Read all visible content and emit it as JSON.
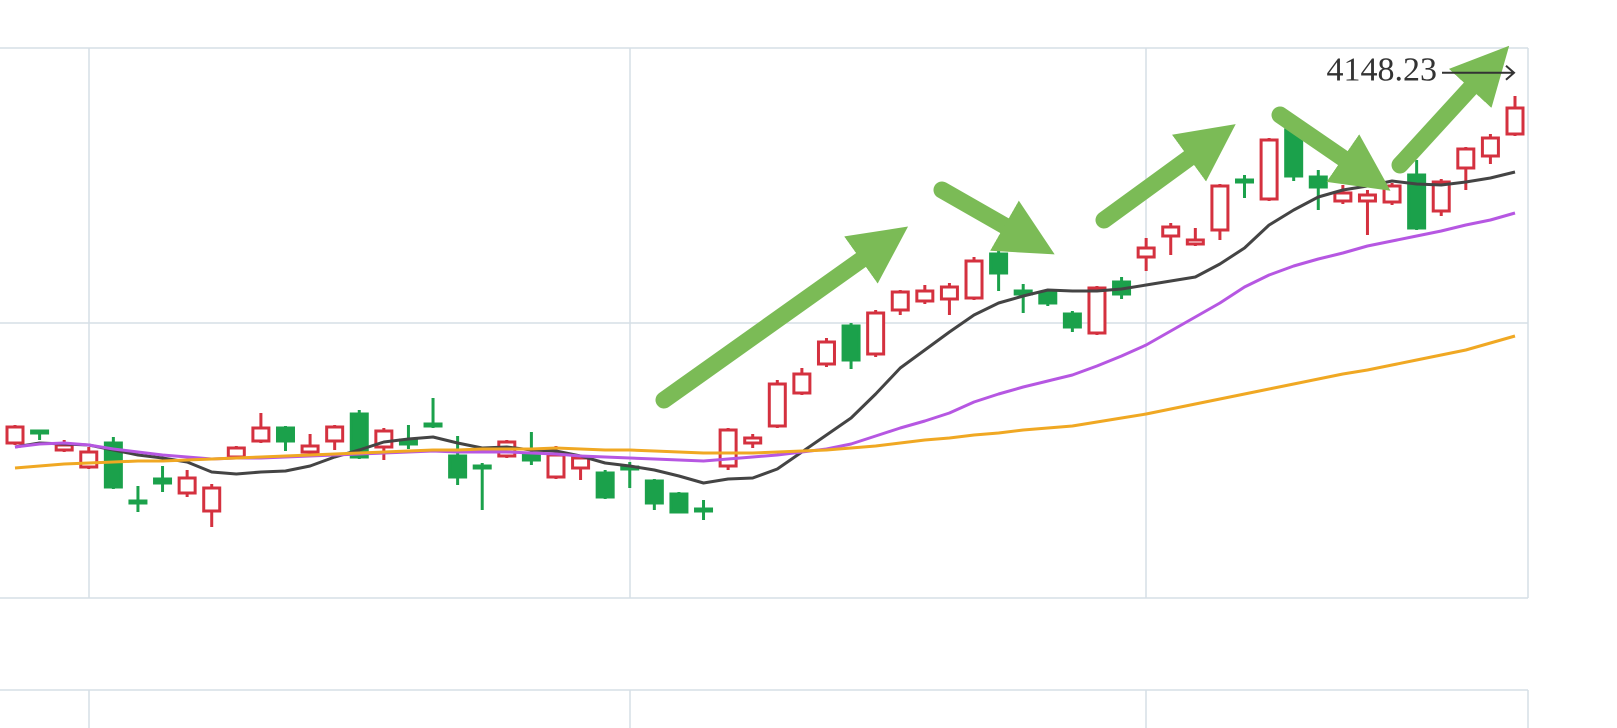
{
  "chart_data": {
    "type": "candlestick",
    "up_color": "#d4313f",
    "down_color": "#1ba14b",
    "ylim": [
      2835,
      4210
    ],
    "price_marker": 4148.23,
    "open": [
      3222.5,
      3252.5,
      3205,
      3162.5,
      3222.5,
      3077.5,
      3132.5,
      3097.5,
      3052.5,
      3187.5,
      3227.5,
      3260,
      3200,
      3227.5,
      3295,
      3212.5,
      3230,
      3270,
      3190,
      3165,
      3190,
      3192.5,
      3137.5,
      3160,
      3147.5,
      3162.5,
      3127.5,
      3095,
      3057.5,
      3165,
      3222.5,
      3265,
      3347.5,
      3420,
      3515,
      3445,
      3555,
      3577.5,
      3582.5,
      3585,
      3695,
      3602.5,
      3597.5,
      3545,
      3497.5,
      3625,
      3687.5,
      3740,
      3720,
      3755,
      3880,
      3832.5,
      4005,
      3887.5,
      3827.5,
      3827.5,
      3825,
      3892.5,
      3802.5,
      3910,
      3940,
      3995
    ],
    "high": [
      3267.5,
      3255,
      3230,
      3212.5,
      3237.5,
      3115,
      3165,
      3155,
      3120,
      3215,
      3297.5,
      3265,
      3245,
      3267.5,
      3305,
      3260,
      3267.5,
      3335,
      3240,
      3172.5,
      3230,
      3250,
      3215,
      3192.5,
      3155,
      3175,
      3132.5,
      3100,
      3080,
      3260,
      3245,
      3380,
      3410,
      3485,
      3522.5,
      3555,
      3605,
      3617.5,
      3622.5,
      3687.5,
      3705,
      3620,
      3605,
      3552.5,
      3615,
      3637.5,
      3735,
      3772.5,
      3760,
      3870,
      3892.5,
      3985,
      4010,
      3905,
      3867.5,
      3855,
      3872.5,
      3930,
      3882.5,
      3962.5,
      3995,
      4090
    ],
    "low": [
      3217.5,
      3230,
      3200,
      3157.5,
      3107.5,
      3050,
      3100,
      3087.5,
      3012.5,
      3182.5,
      3222.5,
      3202.5,
      3195,
      3205,
      3182.5,
      3180,
      3207.5,
      3260,
      3117.5,
      3055,
      3185,
      3167.5,
      3132.5,
      3130,
      3082.5,
      3110,
      3055,
      3047.5,
      3030,
      3155,
      3210,
      3260,
      3342.5,
      3412.5,
      3407.5,
      3437.5,
      3542.5,
      3570,
      3542.5,
      3580,
      3602.5,
      3547.5,
      3565,
      3500,
      3492.5,
      3582.5,
      3652.5,
      3692.5,
      3715,
      3730,
      3835,
      3827.5,
      3877.5,
      3805,
      3820,
      3742.5,
      3817.5,
      3755,
      3790,
      3855,
      3920,
      3990
    ],
    "close": [
      3262.5,
      3247.5,
      3217.5,
      3200,
      3112.5,
      3072.5,
      3122.5,
      3135,
      3110,
      3210,
      3260,
      3227.5,
      3215,
      3262.5,
      3187.5,
      3252.5,
      3220,
      3265,
      3137.5,
      3160,
      3225,
      3180,
      3192.5,
      3185,
      3087.5,
      3157.5,
      3072.5,
      3050,
      3055,
      3255,
      3235,
      3370,
      3395,
      3475,
      3430,
      3547.5,
      3600,
      3602.5,
      3612.5,
      3677.5,
      3647.5,
      3595,
      3572.5,
      3512.5,
      3610,
      3595,
      3710,
      3762.5,
      3730,
      3865,
      3875,
      3980,
      3890,
      3862.5,
      3847.5,
      3842.5,
      3865,
      3760,
      3875,
      3957.5,
      3985,
      4060
    ],
    "series": [
      {
        "color": "#444444",
        "values": [
          3212.5,
          3222.5,
          3220,
          3217.5,
          3205,
          3192.5,
          3185,
          3175,
          3150,
          3145,
          3150,
          3152.5,
          3165,
          3187.5,
          3205,
          3225,
          3232.5,
          3237.5,
          3222.5,
          3210,
          3212.5,
          3205,
          3202.5,
          3190,
          3172.5,
          3165,
          3155,
          3140,
          3122.5,
          3132.5,
          3135,
          3157.5,
          3200,
          3242.5,
          3285,
          3345,
          3410,
          3455,
          3500,
          3542.5,
          3572.5,
          3590,
          3605,
          3602.5,
          3602.5,
          3607.5,
          3617.5,
          3627.5,
          3637.5,
          3670,
          3710,
          3767.5,
          3805,
          3837.5,
          3855,
          3865,
          3877.5,
          3870,
          3867.5,
          3875,
          3885,
          3900
        ]
      },
      {
        "color": "#b657e2",
        "values": [
          3212.5,
          3220,
          3222.5,
          3217.5,
          3207.5,
          3200,
          3192.5,
          3187.5,
          3182.5,
          3185,
          3185,
          3187.5,
          3190,
          3192.5,
          3195,
          3197.5,
          3200,
          3202.5,
          3200,
          3200,
          3200,
          3197.5,
          3195,
          3190,
          3187.5,
          3185,
          3182.5,
          3180,
          3177.5,
          3182.5,
          3187.5,
          3192.5,
          3200,
          3207.5,
          3220,
          3240,
          3260,
          3277.5,
          3297.5,
          3325,
          3345,
          3362.5,
          3377.5,
          3392.5,
          3415,
          3440,
          3467.5,
          3502.5,
          3537.5,
          3572.5,
          3612.5,
          3642.5,
          3665,
          3682.5,
          3697.5,
          3715,
          3727.5,
          3740,
          3752.5,
          3767.5,
          3780,
          3797.5
        ]
      },
      {
        "color": "#f0a823",
        "values": [
          3160,
          3165,
          3170,
          3172.5,
          3175,
          3177.5,
          3177.5,
          3180,
          3182.5,
          3185,
          3187.5,
          3190,
          3192.5,
          3195,
          3197.5,
          3200,
          3202.5,
          3205,
          3205,
          3207.5,
          3207.5,
          3207.5,
          3210,
          3207.5,
          3205,
          3205,
          3202.5,
          3200,
          3197.5,
          3197.5,
          3197.5,
          3200,
          3202.5,
          3205,
          3210,
          3215,
          3222.5,
          3230,
          3235,
          3242.5,
          3247.5,
          3255,
          3260,
          3265,
          3275,
          3285,
          3295,
          3307.5,
          3320,
          3332.5,
          3345,
          3357.5,
          3370,
          3382.5,
          3395,
          3405,
          3417.5,
          3430,
          3442.5,
          3455,
          3472.5,
          3490
        ]
      }
    ]
  }
}
